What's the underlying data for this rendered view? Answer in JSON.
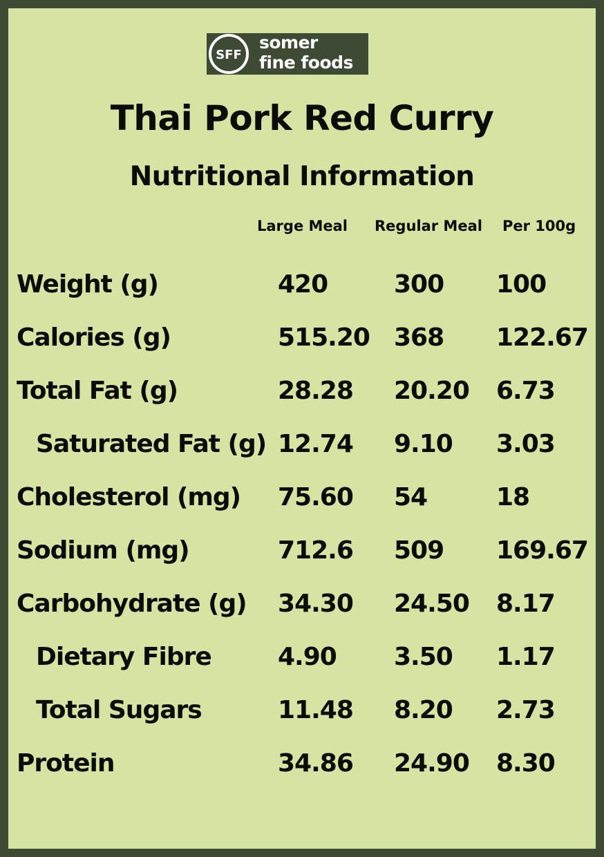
{
  "brand": {
    "logo_letters": "SFF",
    "line1": "somer",
    "line2": "fine foods"
  },
  "header": {
    "title": "Thai Pork Red Curry",
    "subtitle": "Nutritional Information"
  },
  "columns": {
    "large": "Large Meal",
    "regular": "Regular Meal",
    "per100": "Per 100g"
  },
  "rows": [
    {
      "label": "Weight (g)",
      "large": "420",
      "regular": "300",
      "per100": "100"
    },
    {
      "label": "Calories (g)",
      "large": "515.20",
      "regular": "368",
      "per100": "122.67"
    },
    {
      "label": "Total Fat (g)",
      "large": "28.28",
      "regular": "20.20",
      "per100": "6.73"
    },
    {
      "label": "Saturated Fat (g)",
      "large": "12.74",
      "regular": "9.10",
      "per100": "3.03"
    },
    {
      "label": "Cholesterol (mg)",
      "large": "75.60",
      "regular": "54",
      "per100": "18"
    },
    {
      "label": "Sodium (mg)",
      "large": "712.6",
      "regular": "509",
      "per100": "169.67"
    },
    {
      "label": "Carbohydrate (g)",
      "large": "34.30",
      "regular": "24.50",
      "per100": "8.17"
    },
    {
      "label": "Dietary Fibre",
      "large": "4.90",
      "regular": "3.50",
      "per100": "1.17"
    },
    {
      "label": "Total Sugars",
      "large": "11.48",
      "regular": "8.20",
      "per100": "2.73"
    },
    {
      "label": "Protein",
      "large": "34.86",
      "regular": "24.90",
      "per100": "8.30"
    }
  ],
  "colors": {
    "background": "#d5e3a3",
    "border": "#3d4a34",
    "logo_background": "#3f4a34",
    "text": "#0b0b08"
  }
}
